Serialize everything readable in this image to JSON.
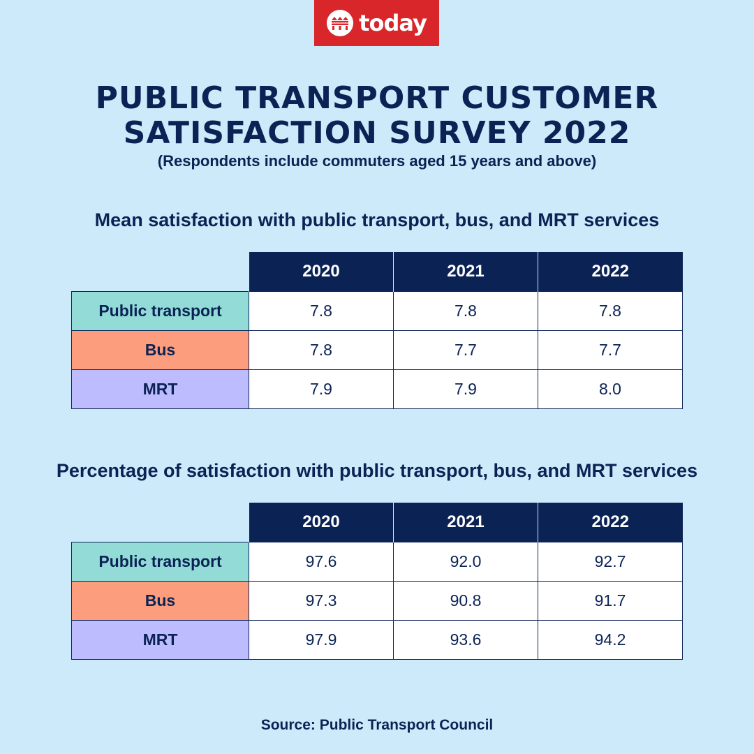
{
  "brand": {
    "logo_text": "today",
    "logo_icon": "mediacorp-logo-icon",
    "logo_color": "#d8262b"
  },
  "header": {
    "title_line1": "PUBLIC TRANSPORT CUSTOMER",
    "title_line2": "SATISFACTION SURVEY 2022",
    "subtitle": "(Respondents include commuters aged 15 years and above)"
  },
  "colors": {
    "background": "#cdeafb",
    "navy": "#0b2254",
    "public_transport": "#92dbd7",
    "bus": "#fc9d7d",
    "mrt": "#bdbcff"
  },
  "chart_data": [
    {
      "type": "table",
      "title": "Mean satisfaction with public transport, bus, and MRT services",
      "columns": [
        "2020",
        "2021",
        "2022"
      ],
      "rows": [
        {
          "label": "Public transport",
          "color": "#92dbd7",
          "values": [
            "7.8",
            "7.8",
            "7.8"
          ]
        },
        {
          "label": "Bus",
          "color": "#fc9d7d",
          "values": [
            "7.8",
            "7.7",
            "7.7"
          ]
        },
        {
          "label": "MRT",
          "color": "#bdbcff",
          "values": [
            "7.9",
            "7.9",
            "8.0"
          ]
        }
      ]
    },
    {
      "type": "table",
      "title": "Percentage of satisfaction with public transport, bus, and MRT services",
      "columns": [
        "2020",
        "2021",
        "2022"
      ],
      "rows": [
        {
          "label": "Public transport",
          "color": "#92dbd7",
          "values": [
            "97.6",
            "92.0",
            "92.7"
          ]
        },
        {
          "label": "Bus",
          "color": "#fc9d7d",
          "values": [
            "97.3",
            "90.8",
            "91.7"
          ]
        },
        {
          "label": "MRT",
          "color": "#bdbcff",
          "values": [
            "97.9",
            "93.6",
            "94.2"
          ]
        }
      ]
    }
  ],
  "footer": {
    "source": "Source: Public Transport Council"
  }
}
